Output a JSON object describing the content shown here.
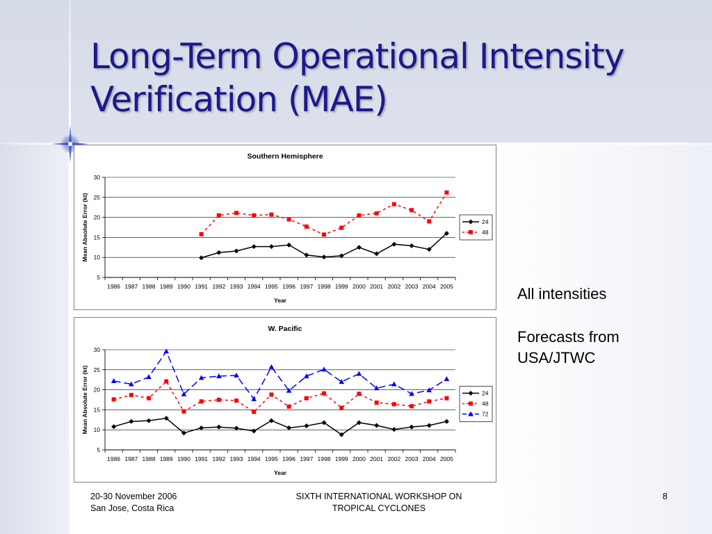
{
  "slide": {
    "title_line1": "Long-Term Operational Intensity",
    "title_line2": "Verification (MAE)",
    "side_text_1": "All intensities",
    "side_text_2a": "Forecasts from",
    "side_text_2b": "USA/JTWC",
    "footer_left_1": "20-30 November 2006",
    "footer_left_2": "San Jose, Costa Rica",
    "footer_center_1": "SIXTH INTERNATIONAL WORKSHOP ON",
    "footer_center_2": "TROPICAL CYCLONES",
    "page_number": "8",
    "colors": {
      "title": "#1a1a8c",
      "series_24": "#000000",
      "series_48": "#ff0000",
      "series_72": "#0000ff"
    }
  },
  "chart_data": [
    {
      "type": "line",
      "title": "Southern Hemisphere",
      "xlabel": "Year",
      "ylabel": "Mean Absolute Error (kt)",
      "ylim": [
        5,
        30
      ],
      "yticks": [
        "5",
        "10",
        "15",
        "20",
        "25",
        "30"
      ],
      "grid": true,
      "legend": "right",
      "categories": [
        "1986",
        "1987",
        "1988",
        "1989",
        "1990",
        "1991",
        "1992",
        "1993",
        "1994",
        "1995",
        "1996",
        "1997",
        "1998",
        "1999",
        "2000",
        "2001",
        "2002",
        "2003",
        "2004",
        "2005"
      ],
      "series": [
        {
          "name": "24",
          "color": "#000000",
          "dash": "",
          "marker": "diamond",
          "values": [
            null,
            null,
            null,
            null,
            null,
            9.9,
            11.2,
            11.6,
            12.7,
            12.7,
            13.1,
            10.6,
            10.1,
            10.4,
            12.5,
            10.9,
            13.3,
            12.9,
            12.0,
            16.0
          ]
        },
        {
          "name": "48",
          "color": "#ff0000",
          "dash": "4,4",
          "marker": "square",
          "values": [
            null,
            null,
            null,
            null,
            null,
            15.8,
            20.5,
            21.1,
            20.5,
            20.7,
            19.5,
            17.7,
            15.7,
            17.4,
            20.5,
            21.0,
            23.3,
            21.8,
            19.0,
            26.2
          ]
        }
      ]
    },
    {
      "type": "line",
      "title": "W. Pacific",
      "xlabel": "Year",
      "ylabel": "Mean Absolute Error (kt)",
      "ylim": [
        5,
        30
      ],
      "yticks": [
        "5",
        "10",
        "15",
        "20",
        "25",
        "30"
      ],
      "grid": true,
      "legend": "right",
      "categories": [
        "1986",
        "1987",
        "1988",
        "1989",
        "1990",
        "1991",
        "1992",
        "1993",
        "1994",
        "1995",
        "1996",
        "1997",
        "1998",
        "1999",
        "2000",
        "2001",
        "2002",
        "2003",
        "2004",
        "2005"
      ],
      "series": [
        {
          "name": "24",
          "color": "#000000",
          "dash": "",
          "marker": "diamond",
          "values": [
            10.8,
            12.1,
            12.3,
            12.9,
            9.2,
            10.5,
            10.7,
            10.4,
            9.7,
            12.3,
            10.5,
            11.0,
            11.8,
            8.8,
            11.8,
            11.1,
            10.1,
            10.7,
            11.1,
            12.1
          ]
        },
        {
          "name": "48",
          "color": "#ff0000",
          "dash": "4,4",
          "marker": "square",
          "values": [
            17.6,
            18.7,
            17.9,
            22.1,
            14.6,
            17.1,
            17.5,
            17.3,
            14.5,
            18.8,
            15.8,
            17.9,
            19.1,
            15.5,
            19.0,
            16.8,
            16.4,
            15.9,
            17.1,
            17.9
          ]
        },
        {
          "name": "72",
          "color": "#0000ff",
          "dash": "10,5",
          "marker": "triangle",
          "values": [
            22.2,
            21.4,
            23.2,
            29.6,
            18.9,
            23.0,
            23.4,
            23.6,
            17.7,
            25.7,
            19.8,
            23.4,
            25.1,
            22.0,
            24.0,
            20.4,
            21.4,
            19.0,
            19.9,
            22.7
          ]
        }
      ]
    }
  ]
}
